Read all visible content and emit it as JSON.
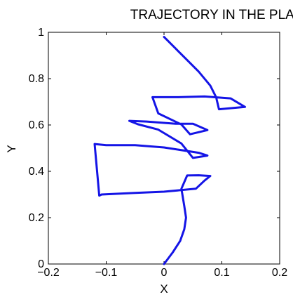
{
  "chart_data": {
    "type": "line",
    "title": "TRAJECTORY IN THE PLANE",
    "xlabel": "X",
    "ylabel": "Y",
    "xlim": [
      -0.2,
      0.2
    ],
    "ylim": [
      0,
      1
    ],
    "grid": false,
    "xticks": [
      -0.2,
      -0.1,
      0,
      0.1,
      0.2
    ],
    "xtick_labels": [
      "−0.2",
      "−0.1",
      "0",
      "0.1",
      "0.2"
    ],
    "yticks": [
      0,
      0.2,
      0.4,
      0.6,
      0.8,
      1
    ],
    "ytick_labels": [
      "0",
      "0.2",
      "0.4",
      "0.6",
      "0.8",
      "1"
    ],
    "series": [
      {
        "color": "#1414e6",
        "x": [
          0.0,
          0.015,
          0.028,
          0.035,
          0.038,
          0.035,
          0.03,
          0.04,
          0.06,
          0.08,
          0.07,
          0.055,
          0.0,
          -0.05,
          -0.108,
          -0.112,
          -0.115,
          -0.12,
          -0.1,
          -0.05,
          0.0,
          0.06,
          0.075,
          0.05,
          0.03,
          -0.01,
          -0.045,
          -0.06,
          -0.03,
          0.02,
          0.05,
          0.075,
          0.045,
          0.03,
          -0.01,
          -0.02,
          0.025,
          0.07,
          0.115,
          0.14,
          0.095,
          0.09,
          0.08,
          0.06,
          0.04,
          0.02,
          0.0
        ],
        "y": [
          0.0,
          0.05,
          0.1,
          0.15,
          0.2,
          0.25,
          0.325,
          0.382,
          0.383,
          0.38,
          0.36,
          0.325,
          0.312,
          0.307,
          0.3,
          0.295,
          0.38,
          0.518,
          0.513,
          0.513,
          0.503,
          0.48,
          0.468,
          0.458,
          0.52,
          0.58,
          0.603,
          0.618,
          0.615,
          0.605,
          0.605,
          0.578,
          0.56,
          0.602,
          0.65,
          0.72,
          0.72,
          0.723,
          0.715,
          0.678,
          0.668,
          0.72,
          0.77,
          0.83,
          0.88,
          0.93,
          0.98
        ]
      }
    ]
  }
}
